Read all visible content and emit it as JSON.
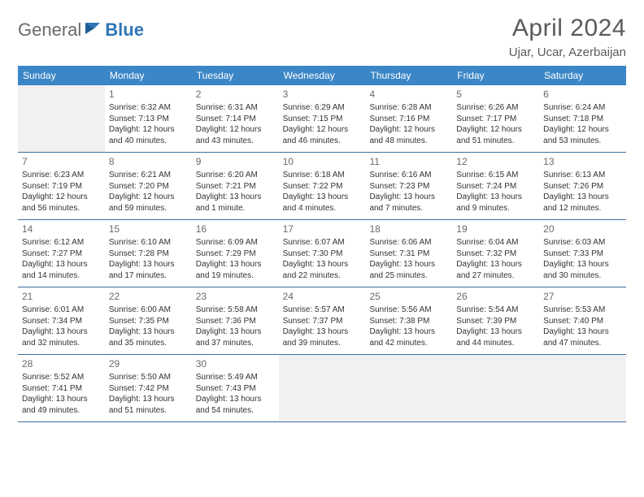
{
  "logo": {
    "general": "General",
    "blue": "Blue"
  },
  "title": "April 2024",
  "location": "Ujar, Ucar, Azerbaijan",
  "colors": {
    "header_bg": "#3b86c6",
    "header_text": "#ffffff",
    "row_border": "#3b6fa0",
    "empty_bg": "#f1f1f1",
    "text": "#333333",
    "title_color": "#5a5a5a",
    "logo_gray": "#6a6a6a",
    "logo_blue": "#2f76b7"
  },
  "weekdays": [
    "Sunday",
    "Monday",
    "Tuesday",
    "Wednesday",
    "Thursday",
    "Friday",
    "Saturday"
  ],
  "weeks": [
    [
      null,
      {
        "n": "1",
        "sr": "Sunrise: 6:32 AM",
        "ss": "Sunset: 7:13 PM",
        "d1": "Daylight: 12 hours",
        "d2": "and 40 minutes."
      },
      {
        "n": "2",
        "sr": "Sunrise: 6:31 AM",
        "ss": "Sunset: 7:14 PM",
        "d1": "Daylight: 12 hours",
        "d2": "and 43 minutes."
      },
      {
        "n": "3",
        "sr": "Sunrise: 6:29 AM",
        "ss": "Sunset: 7:15 PM",
        "d1": "Daylight: 12 hours",
        "d2": "and 46 minutes."
      },
      {
        "n": "4",
        "sr": "Sunrise: 6:28 AM",
        "ss": "Sunset: 7:16 PM",
        "d1": "Daylight: 12 hours",
        "d2": "and 48 minutes."
      },
      {
        "n": "5",
        "sr": "Sunrise: 6:26 AM",
        "ss": "Sunset: 7:17 PM",
        "d1": "Daylight: 12 hours",
        "d2": "and 51 minutes."
      },
      {
        "n": "6",
        "sr": "Sunrise: 6:24 AM",
        "ss": "Sunset: 7:18 PM",
        "d1": "Daylight: 12 hours",
        "d2": "and 53 minutes."
      }
    ],
    [
      {
        "n": "7",
        "sr": "Sunrise: 6:23 AM",
        "ss": "Sunset: 7:19 PM",
        "d1": "Daylight: 12 hours",
        "d2": "and 56 minutes."
      },
      {
        "n": "8",
        "sr": "Sunrise: 6:21 AM",
        "ss": "Sunset: 7:20 PM",
        "d1": "Daylight: 12 hours",
        "d2": "and 59 minutes."
      },
      {
        "n": "9",
        "sr": "Sunrise: 6:20 AM",
        "ss": "Sunset: 7:21 PM",
        "d1": "Daylight: 13 hours",
        "d2": "and 1 minute."
      },
      {
        "n": "10",
        "sr": "Sunrise: 6:18 AM",
        "ss": "Sunset: 7:22 PM",
        "d1": "Daylight: 13 hours",
        "d2": "and 4 minutes."
      },
      {
        "n": "11",
        "sr": "Sunrise: 6:16 AM",
        "ss": "Sunset: 7:23 PM",
        "d1": "Daylight: 13 hours",
        "d2": "and 7 minutes."
      },
      {
        "n": "12",
        "sr": "Sunrise: 6:15 AM",
        "ss": "Sunset: 7:24 PM",
        "d1": "Daylight: 13 hours",
        "d2": "and 9 minutes."
      },
      {
        "n": "13",
        "sr": "Sunrise: 6:13 AM",
        "ss": "Sunset: 7:26 PM",
        "d1": "Daylight: 13 hours",
        "d2": "and 12 minutes."
      }
    ],
    [
      {
        "n": "14",
        "sr": "Sunrise: 6:12 AM",
        "ss": "Sunset: 7:27 PM",
        "d1": "Daylight: 13 hours",
        "d2": "and 14 minutes."
      },
      {
        "n": "15",
        "sr": "Sunrise: 6:10 AM",
        "ss": "Sunset: 7:28 PM",
        "d1": "Daylight: 13 hours",
        "d2": "and 17 minutes."
      },
      {
        "n": "16",
        "sr": "Sunrise: 6:09 AM",
        "ss": "Sunset: 7:29 PM",
        "d1": "Daylight: 13 hours",
        "d2": "and 19 minutes."
      },
      {
        "n": "17",
        "sr": "Sunrise: 6:07 AM",
        "ss": "Sunset: 7:30 PM",
        "d1": "Daylight: 13 hours",
        "d2": "and 22 minutes."
      },
      {
        "n": "18",
        "sr": "Sunrise: 6:06 AM",
        "ss": "Sunset: 7:31 PM",
        "d1": "Daylight: 13 hours",
        "d2": "and 25 minutes."
      },
      {
        "n": "19",
        "sr": "Sunrise: 6:04 AM",
        "ss": "Sunset: 7:32 PM",
        "d1": "Daylight: 13 hours",
        "d2": "and 27 minutes."
      },
      {
        "n": "20",
        "sr": "Sunrise: 6:03 AM",
        "ss": "Sunset: 7:33 PM",
        "d1": "Daylight: 13 hours",
        "d2": "and 30 minutes."
      }
    ],
    [
      {
        "n": "21",
        "sr": "Sunrise: 6:01 AM",
        "ss": "Sunset: 7:34 PM",
        "d1": "Daylight: 13 hours",
        "d2": "and 32 minutes."
      },
      {
        "n": "22",
        "sr": "Sunrise: 6:00 AM",
        "ss": "Sunset: 7:35 PM",
        "d1": "Daylight: 13 hours",
        "d2": "and 35 minutes."
      },
      {
        "n": "23",
        "sr": "Sunrise: 5:58 AM",
        "ss": "Sunset: 7:36 PM",
        "d1": "Daylight: 13 hours",
        "d2": "and 37 minutes."
      },
      {
        "n": "24",
        "sr": "Sunrise: 5:57 AM",
        "ss": "Sunset: 7:37 PM",
        "d1": "Daylight: 13 hours",
        "d2": "and 39 minutes."
      },
      {
        "n": "25",
        "sr": "Sunrise: 5:56 AM",
        "ss": "Sunset: 7:38 PM",
        "d1": "Daylight: 13 hours",
        "d2": "and 42 minutes."
      },
      {
        "n": "26",
        "sr": "Sunrise: 5:54 AM",
        "ss": "Sunset: 7:39 PM",
        "d1": "Daylight: 13 hours",
        "d2": "and 44 minutes."
      },
      {
        "n": "27",
        "sr": "Sunrise: 5:53 AM",
        "ss": "Sunset: 7:40 PM",
        "d1": "Daylight: 13 hours",
        "d2": "and 47 minutes."
      }
    ],
    [
      {
        "n": "28",
        "sr": "Sunrise: 5:52 AM",
        "ss": "Sunset: 7:41 PM",
        "d1": "Daylight: 13 hours",
        "d2": "and 49 minutes."
      },
      {
        "n": "29",
        "sr": "Sunrise: 5:50 AM",
        "ss": "Sunset: 7:42 PM",
        "d1": "Daylight: 13 hours",
        "d2": "and 51 minutes."
      },
      {
        "n": "30",
        "sr": "Sunrise: 5:49 AM",
        "ss": "Sunset: 7:43 PM",
        "d1": "Daylight: 13 hours",
        "d2": "and 54 minutes."
      },
      null,
      null,
      null,
      null
    ]
  ]
}
